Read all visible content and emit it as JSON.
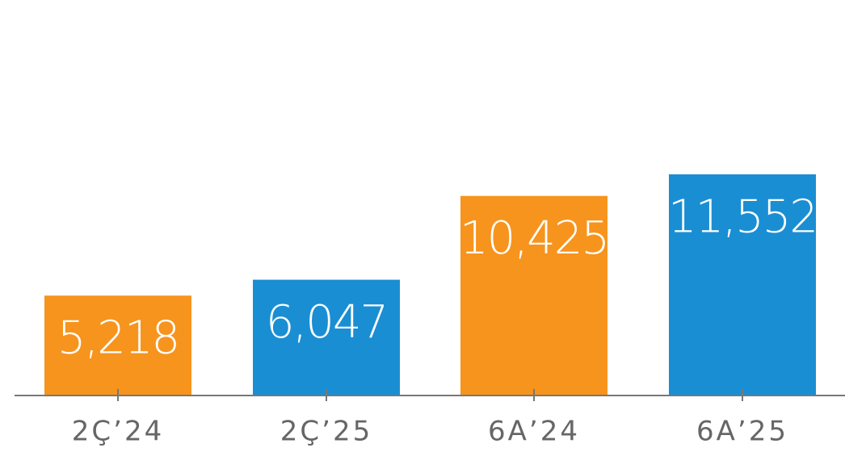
{
  "chart_data": {
    "type": "bar",
    "categories": [
      "2Ç’24",
      "2Ç’25",
      "6A’24",
      "6A’25"
    ],
    "values": [
      5218,
      6047,
      10425,
      11552
    ],
    "value_labels": [
      "5,218",
      "6,047",
      "10,425",
      "11,552"
    ],
    "colors": [
      "#f7941d",
      "#1a8ed3",
      "#f7941d",
      "#1a8ed3"
    ]
  }
}
